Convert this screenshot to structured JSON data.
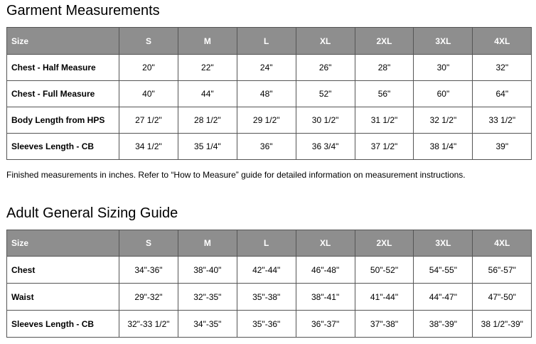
{
  "sections": [
    {
      "title": "Garment Measurements",
      "table": {
        "columns": [
          "Size",
          "S",
          "M",
          "L",
          "XL",
          "2XL",
          "3XL",
          "4XL"
        ],
        "rows": [
          [
            "Chest - Half Measure",
            "20\"",
            "22\"",
            "24\"",
            "26\"",
            "28\"",
            "30\"",
            "32\""
          ],
          [
            "Chest - Full Measure",
            "40\"",
            "44\"",
            "48\"",
            "52\"",
            "56\"",
            "60\"",
            "64\""
          ],
          [
            "Body Length from HPS",
            "27 1/2\"",
            "28 1/2\"",
            "29 1/2\"",
            "30 1/2\"",
            "31 1/2\"",
            "32 1/2\"",
            "33 1/2\""
          ],
          [
            "Sleeves Length - CB",
            "34 1/2\"",
            "35 1/4\"",
            "36\"",
            "36 3/4\"",
            "37 1/2\"",
            "38 1/4\"",
            "39\""
          ]
        ]
      },
      "note": "Finished measurements in inches. Refer to “How to Measure” guide for detailed information on measurement instructions."
    },
    {
      "title": "Adult General Sizing Guide",
      "table": {
        "columns": [
          "Size",
          "S",
          "M",
          "L",
          "XL",
          "2XL",
          "3XL",
          "4XL"
        ],
        "rows": [
          [
            "Chest",
            "34\"-36\"",
            "38\"-40\"",
            "42\"-44\"",
            "46\"-48\"",
            "50\"-52\"",
            "54\"-55\"",
            "56\"-57\""
          ],
          [
            "Waist",
            "29\"-32\"",
            "32\"-35\"",
            "35\"-38\"",
            "38\"-41\"",
            "41\"-44\"",
            "44\"-47\"",
            "47\"-50\""
          ],
          [
            "Sleeves Length - CB",
            "32\"-33 1/2\"",
            "34\"-35\"",
            "35\"-36\"",
            "36\"-37\"",
            "37\"-38\"",
            "38\"-39\"",
            "38 1/2\"-39\""
          ]
        ]
      }
    }
  ]
}
